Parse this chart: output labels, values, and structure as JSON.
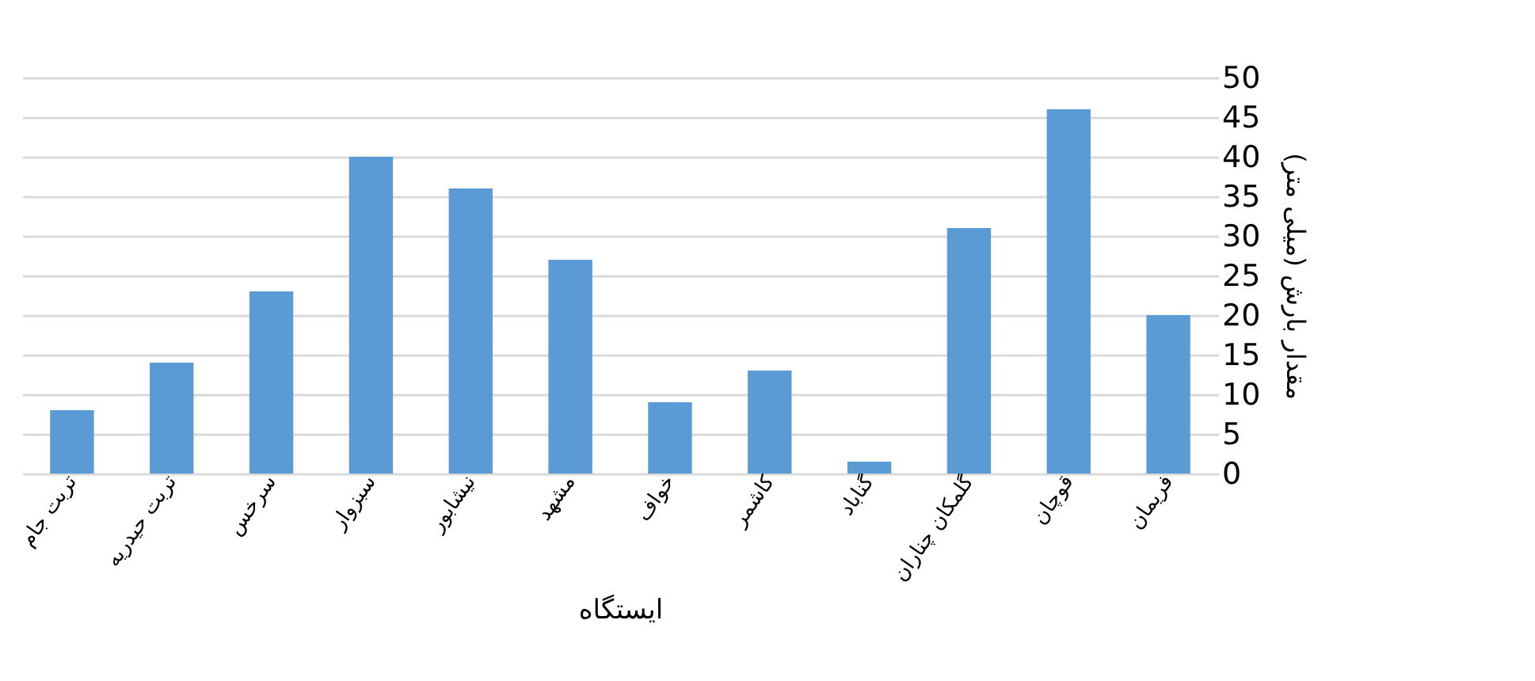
{
  "chart_data": {
    "type": "bar",
    "categories": [
      "تربت جام",
      "تربت حیدریه",
      "سرخس",
      "سبزوار",
      "نیشابور",
      "مشهد",
      "خواف",
      "کاشمر",
      "گناباد",
      "گلمکان چناران",
      "قوچان",
      "فریمان"
    ],
    "values": [
      8,
      14,
      23,
      40,
      36,
      27,
      9,
      13,
      1.5,
      31,
      46,
      20
    ],
    "color": "#5b9bd5",
    "xlabel": "ایستگاه",
    "ylabel": "مقدار بارش (میلی متر)",
    "ylim": [
      0,
      50
    ],
    "yticks": [
      0,
      5,
      10,
      15,
      20,
      25,
      30,
      35,
      40,
      45,
      50
    ],
    "grid": "y"
  }
}
